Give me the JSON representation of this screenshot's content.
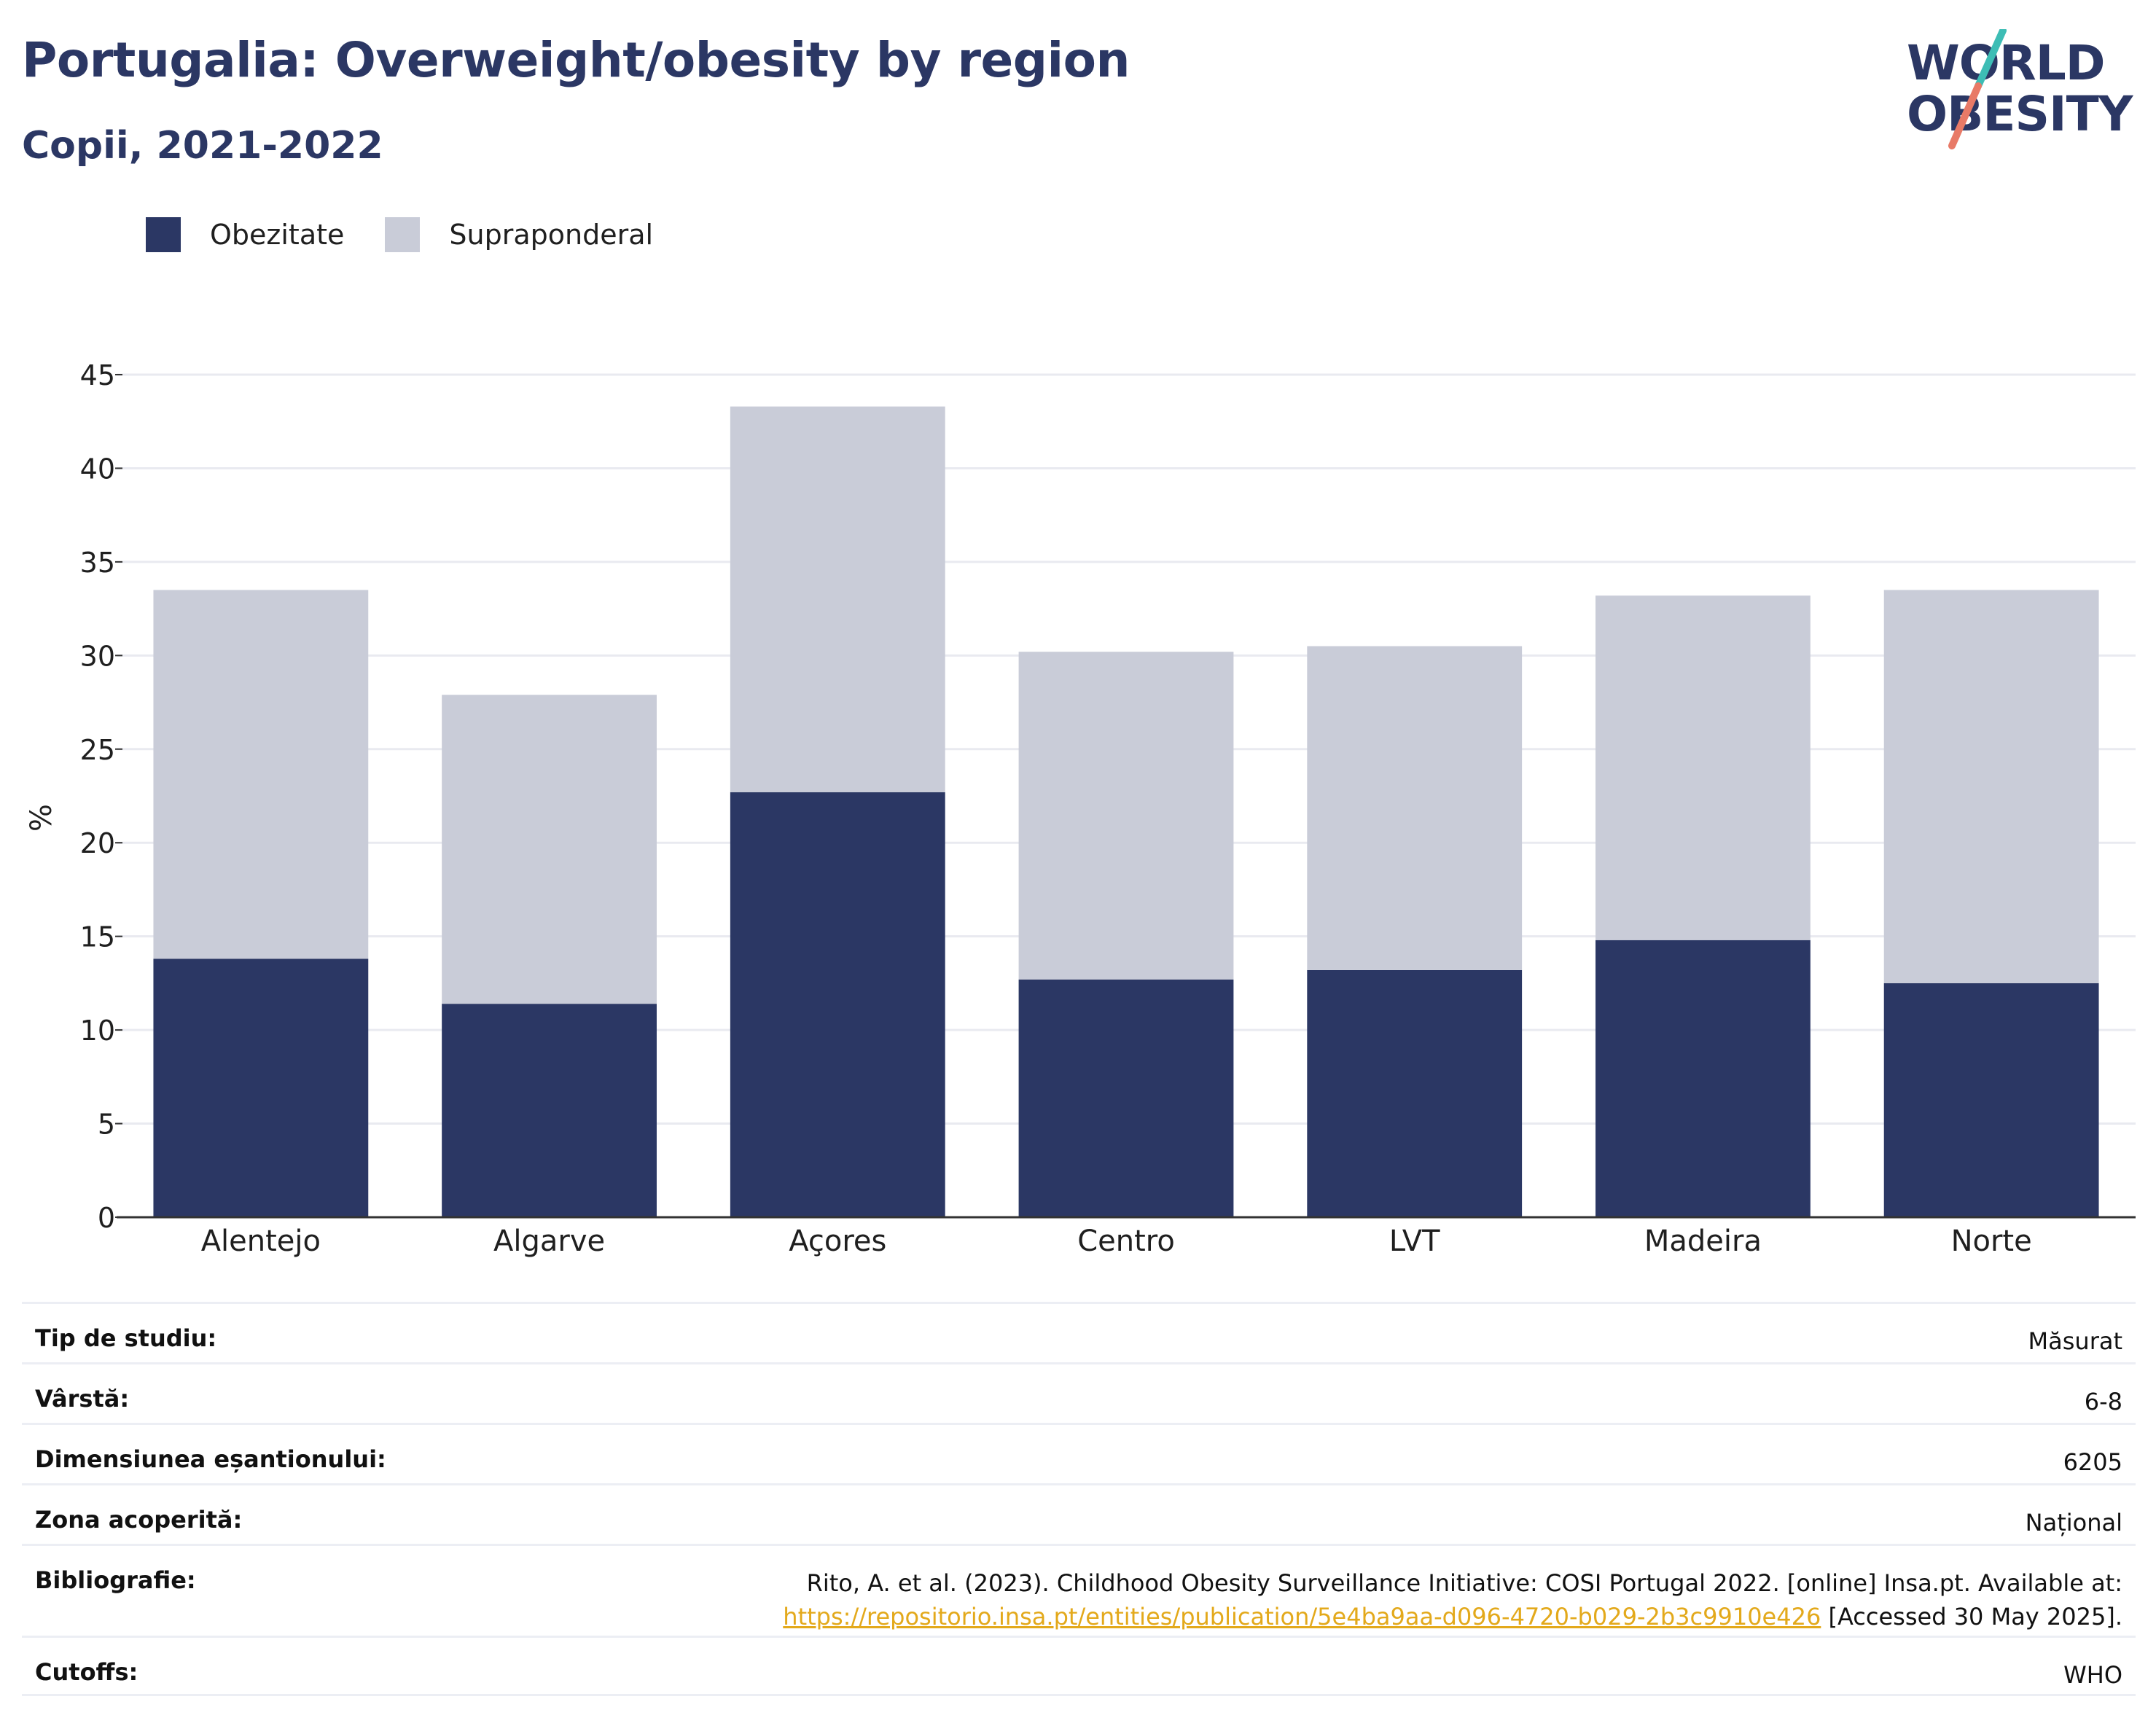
{
  "header": {
    "title": "Portugalia: Overweight/obesity by region",
    "subtitle": "Copii, 2021-2022",
    "logo_line1": "WORLD",
    "logo_line2": "OBESITY"
  },
  "colors": {
    "obesity": "#2b3764",
    "overweight": "#c9ccd8",
    "logo_teal": "#3dbdb5",
    "logo_coral": "#e87a67",
    "link": "#e3a91b"
  },
  "chart_data": {
    "type": "bar",
    "stacked": true,
    "categories": [
      "Alentejo",
      "Algarve",
      "Açores",
      "Centro",
      "LVT",
      "Madeira",
      "Norte"
    ],
    "series": [
      {
        "name": "Obezitate",
        "values": [
          13.8,
          11.4,
          22.7,
          12.7,
          13.2,
          14.8,
          12.5
        ]
      },
      {
        "name": "Supraponderal",
        "values": [
          19.7,
          16.5,
          20.6,
          17.5,
          17.3,
          18.4,
          21.0
        ]
      }
    ],
    "ylabel": "%",
    "ylim": [
      0,
      45
    ],
    "yticks": [
      0,
      5,
      10,
      15,
      20,
      25,
      30,
      35,
      40,
      45
    ],
    "grid": true,
    "legend_position": "top-left"
  },
  "meta": [
    {
      "key": "Tip de studiu:",
      "value": "Măsurat"
    },
    {
      "key": "Vârstă:",
      "value": "6-8"
    },
    {
      "key": "Dimensiunea eșantionului:",
      "value": "6205"
    },
    {
      "key": "Zona acoperită:",
      "value": "Național"
    },
    {
      "key": "Bibliografie:",
      "value": "Rito, A. et al. (2023). Childhood Obesity Surveillance Initiative: COSI Portugal 2022. [online] Insa.pt. Available at:",
      "link": "https://repositorio.insa.pt/entities/publication/5e4ba9aa-d096-4720-b029-2b3c9910e426",
      "suffix": " [Accessed 30 May 2025]."
    },
    {
      "key": "Cutoffs:",
      "value": "WHO"
    }
  ]
}
